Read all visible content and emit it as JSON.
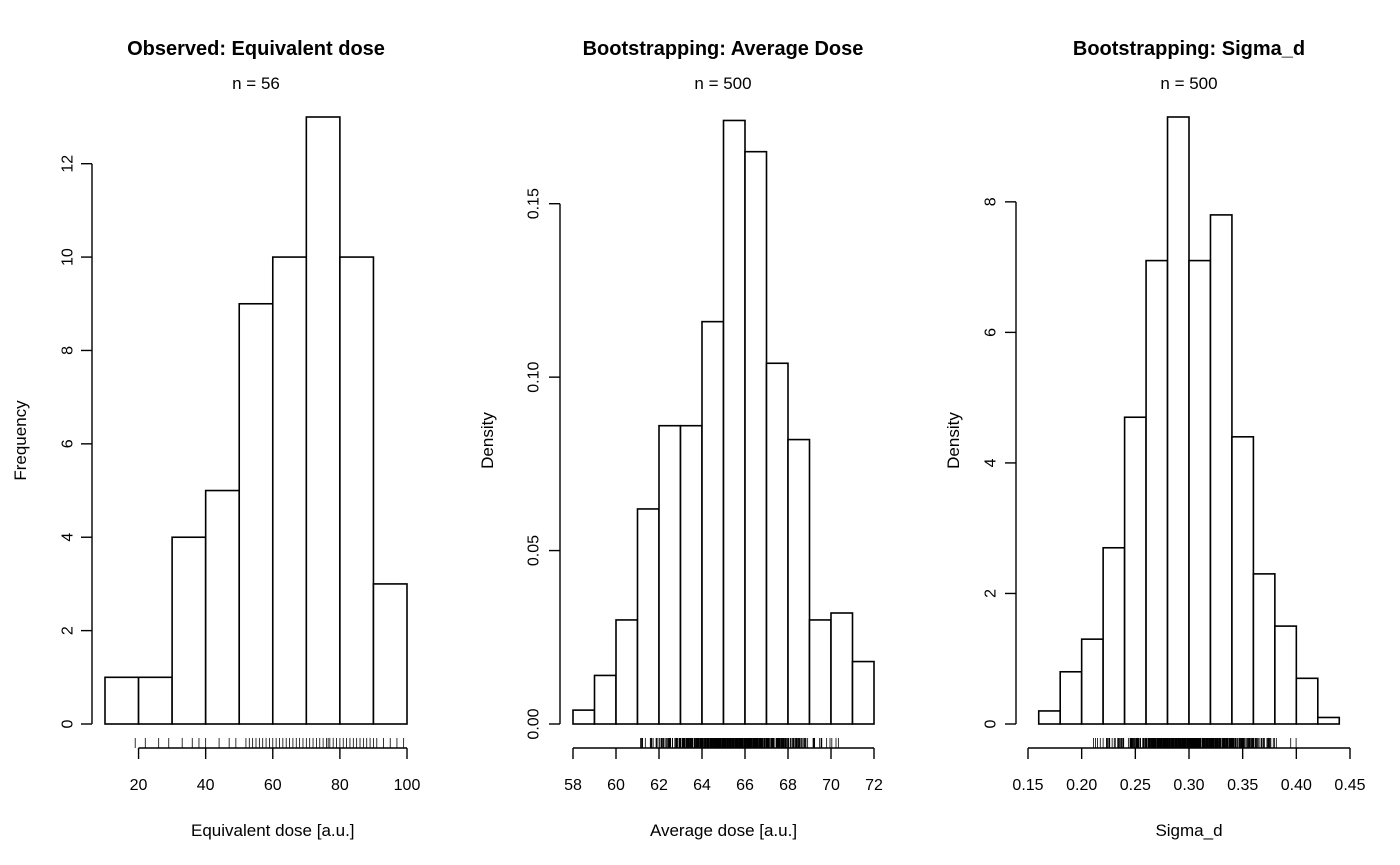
{
  "chart_data": [
    {
      "type": "bar",
      "title": "Observed: Equivalent dose",
      "subtitle": "n =  56",
      "xlabel": "Equivalent dose [a.u.]",
      "ylabel": "Frequency",
      "xlim": [
        10,
        100
      ],
      "ylim": [
        0,
        13
      ],
      "xticks": [
        20,
        40,
        60,
        80,
        100
      ],
      "xtick_labels": [
        "20",
        "40",
        "60",
        "80",
        "100"
      ],
      "yticks": [
        0,
        2,
        4,
        6,
        8,
        10,
        12
      ],
      "ytick_labels": [
        "0",
        "2",
        "4",
        "6",
        "8",
        "10",
        "12"
      ],
      "bin_edges": [
        10,
        20,
        30,
        40,
        50,
        60,
        70,
        80,
        90,
        100
      ],
      "values": [
        1,
        1,
        4,
        5,
        9,
        10,
        13,
        10,
        3
      ],
      "rug": [
        19,
        22,
        26,
        29,
        33,
        36,
        38,
        44,
        47,
        49,
        52,
        53,
        54,
        55,
        56,
        57,
        58,
        59,
        60,
        61,
        62,
        63,
        64,
        65,
        66,
        67,
        68,
        69,
        70,
        71,
        72,
        73,
        74,
        75,
        76,
        76.5,
        77,
        78,
        79,
        80,
        81,
        82,
        83,
        84,
        85,
        86,
        87,
        88,
        89,
        90,
        91,
        93,
        95,
        97,
        99,
        40
      ],
      "grid": false
    },
    {
      "type": "bar",
      "title": "Bootstrapping: Average Dose",
      "subtitle": "n =  500",
      "xlabel": "Average dose [a.u.]",
      "ylabel": "Density",
      "xlim": [
        58,
        72
      ],
      "ylim": [
        0,
        0.175
      ],
      "xticks": [
        58,
        60,
        62,
        64,
        66,
        68,
        70,
        72
      ],
      "xtick_labels": [
        "58",
        "60",
        "62",
        "64",
        "66",
        "68",
        "70",
        "72"
      ],
      "yticks": [
        0,
        0.05,
        0.1,
        0.15
      ],
      "ytick_labels": [
        "0.00",
        "0.05",
        "0.10",
        "0.15"
      ],
      "bin_edges": [
        58,
        59,
        60,
        61,
        62,
        63,
        64,
        65,
        66,
        67,
        68,
        69,
        70,
        71,
        72
      ],
      "values": [
        0.004,
        0.014,
        0.03,
        0.062,
        0.086,
        0.086,
        0.116,
        0.174,
        0.165,
        0.104,
        0.082,
        0.03,
        0.032,
        0.018
      ],
      "rug_range": [
        59.2,
        71.8
      ],
      "grid": false
    },
    {
      "type": "bar",
      "title": "Bootstrapping: Sigma_d",
      "subtitle": "n =  500",
      "xlabel": "Sigma_d",
      "ylabel": "Density",
      "xlim": [
        0.15,
        0.45
      ],
      "ylim": [
        0,
        9.3
      ],
      "xticks": [
        0.15,
        0.2,
        0.25,
        0.3,
        0.35,
        0.4,
        0.45
      ],
      "xtick_labels": [
        "0.15",
        "0.20",
        "0.25",
        "0.30",
        "0.35",
        "0.40",
        "0.45"
      ],
      "yticks": [
        0,
        2,
        4,
        6,
        8
      ],
      "ytick_labels": [
        "0",
        "2",
        "4",
        "6",
        "8"
      ],
      "bin_edges": [
        0.16,
        0.18,
        0.2,
        0.22,
        0.24,
        0.26,
        0.28,
        0.3,
        0.32,
        0.34,
        0.36,
        0.38,
        0.4,
        0.42,
        0.44
      ],
      "values": [
        0.2,
        0.8,
        1.3,
        2.7,
        4.7,
        7.1,
        9.3,
        7.1,
        7.8,
        4.4,
        2.3,
        1.5,
        0.7,
        0.1
      ],
      "rug_range": [
        0.175,
        0.43
      ],
      "grid": false
    }
  ]
}
